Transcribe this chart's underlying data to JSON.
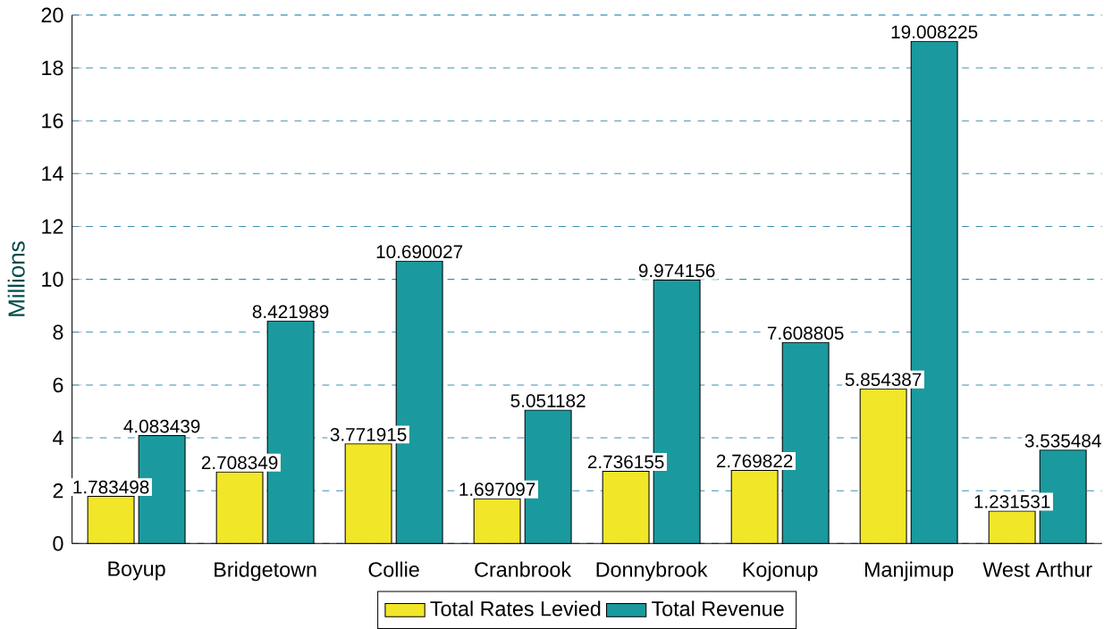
{
  "chart_data": {
    "type": "bar",
    "ylabel": "Millions",
    "categories": [
      "Boyup",
      "Bridgetown",
      "Collie",
      "Cranbrook",
      "Donnybrook",
      "Kojonup",
      "Manjimup",
      "West Arthur"
    ],
    "series": [
      {
        "name": "Total Rates Levied",
        "color": "#f2e629",
        "values": [
          1.783498,
          2.708349,
          3.771915,
          1.697097,
          2.736155,
          2.769822,
          5.854387,
          1.231531
        ]
      },
      {
        "name": "Total Revenue",
        "color": "#1a9a9e",
        "values": [
          4.083439,
          8.421989,
          10.690027,
          5.051182,
          9.974156,
          7.608805,
          19.008225,
          3.535484
        ]
      }
    ],
    "ylim": [
      0,
      20
    ],
    "yticks": [
      0,
      2,
      4,
      6,
      8,
      10,
      12,
      14,
      16,
      18,
      20
    ],
    "grid": "y",
    "legend": "bottom",
    "data_labels": true
  }
}
